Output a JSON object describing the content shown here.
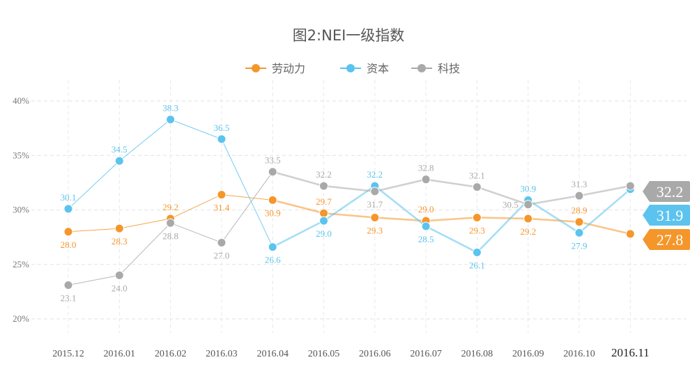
{
  "chart_data": {
    "type": "line",
    "title": "图2:NEI一级指数",
    "categories": [
      "2015.12",
      "2016.01",
      "2016.02",
      "2016.03",
      "2016.04",
      "2016.05",
      "2016.06",
      "2016.07",
      "2016.08",
      "2016.09",
      "2016.10",
      "2016.11"
    ],
    "yticks": [
      "20%",
      "25%",
      "30%",
      "35%",
      "40%"
    ],
    "ylim": [
      20,
      40
    ],
    "grid": true,
    "legend_position": "top-center",
    "series": [
      {
        "name": "劳动力",
        "color": "#F5962A",
        "values": [
          28.0,
          28.3,
          29.2,
          31.4,
          30.9,
          29.7,
          29.3,
          29.0,
          29.3,
          29.2,
          28.9,
          27.8
        ],
        "badge": "27.8"
      },
      {
        "name": "资本",
        "color": "#5BC3EE",
        "values": [
          30.1,
          34.5,
          38.3,
          36.5,
          26.6,
          29.0,
          32.2,
          28.5,
          26.1,
          30.9,
          27.9,
          31.9
        ],
        "badge": "31.9"
      },
      {
        "name": "科技",
        "color": "#A9A9A9",
        "values": [
          23.1,
          24.0,
          28.8,
          27.0,
          33.5,
          32.2,
          31.7,
          32.8,
          32.1,
          30.5,
          31.3,
          32.2
        ],
        "badge": "32.2"
      }
    ]
  }
}
